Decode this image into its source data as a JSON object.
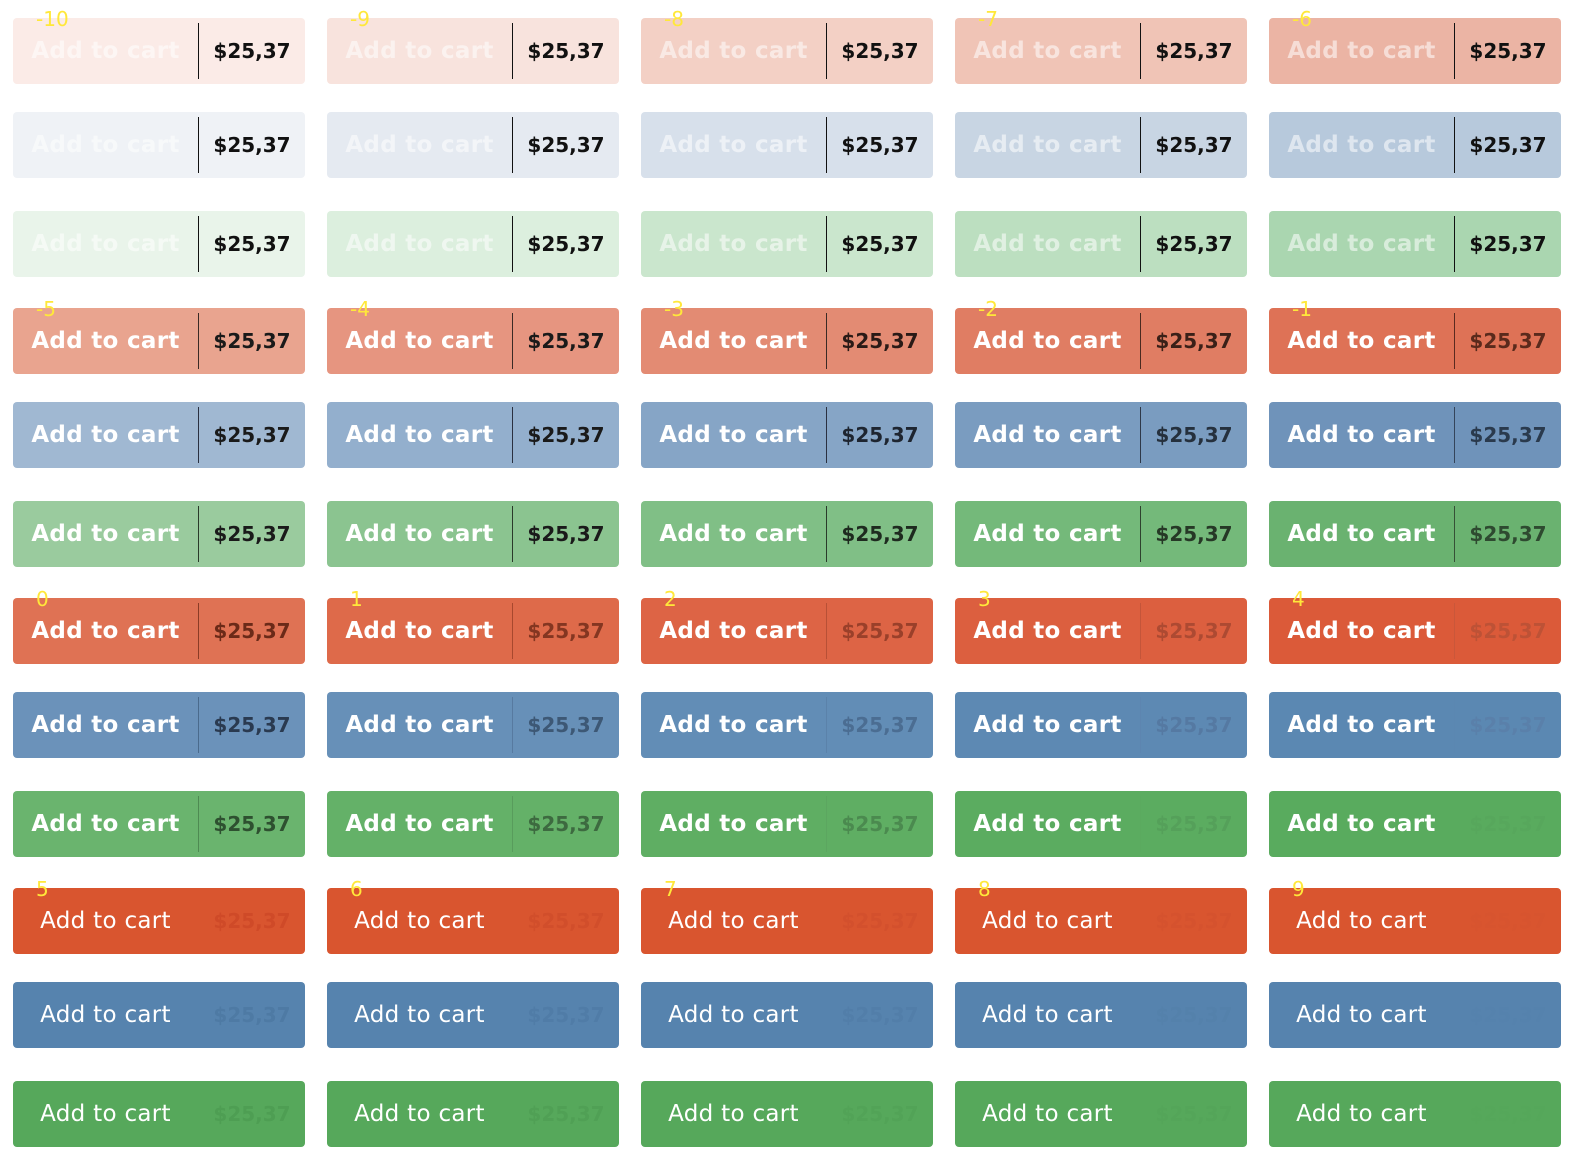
{
  "button_label": "Add to cart",
  "price": "$25,37",
  "colors": {
    "level_label": "#ffe83a",
    "label_text_light": "#ffffff",
    "price_text_dark": "#111111"
  },
  "groups": [
    {
      "level_labels": [
        "-10",
        "-9",
        "-8",
        "-7",
        "-6"
      ],
      "rows": [
        {
          "label_weight": "bold",
          "label_opacity": 0.55,
          "buttons": [
            {
              "bg": "#fbebe7",
              "price_color": "#111111",
              "divider": "#111111"
            },
            {
              "bg": "#f8e3dd",
              "price_color": "#111111",
              "divider": "#111111"
            },
            {
              "bg": "#f3d0c5",
              "price_color": "#111111",
              "divider": "#111111"
            },
            {
              "bg": "#f0c4b6",
              "price_color": "#111111",
              "divider": "#111111"
            },
            {
              "bg": "#ebb4a4",
              "price_color": "#111111",
              "divider": "#111111"
            }
          ]
        },
        {
          "label_weight": "bold",
          "label_opacity": 0.55,
          "buttons": [
            {
              "bg": "#eff2f6",
              "price_color": "#111111",
              "divider": "#111111"
            },
            {
              "bg": "#e5eaf1",
              "price_color": "#111111",
              "divider": "#111111"
            },
            {
              "bg": "#d7e0eb",
              "price_color": "#111111",
              "divider": "#111111"
            },
            {
              "bg": "#c8d5e3",
              "price_color": "#111111",
              "divider": "#111111"
            },
            {
              "bg": "#b7c9dc",
              "price_color": "#111111",
              "divider": "#111111"
            }
          ]
        },
        {
          "label_weight": "bold",
          "label_opacity": 0.55,
          "buttons": [
            {
              "bg": "#e9f4ea",
              "price_color": "#111111",
              "divider": "#111111"
            },
            {
              "bg": "#dcefde",
              "price_color": "#111111",
              "divider": "#111111"
            },
            {
              "bg": "#cae6cd",
              "price_color": "#111111",
              "divider": "#111111"
            },
            {
              "bg": "#bcdfc0",
              "price_color": "#111111",
              "divider": "#111111"
            },
            {
              "bg": "#aad6b0",
              "price_color": "#111111",
              "divider": "#111111"
            }
          ]
        }
      ]
    },
    {
      "level_labels": [
        "-5",
        "-4",
        "-3",
        "-2",
        "-1"
      ],
      "rows": [
        {
          "label_weight": "bold",
          "label_opacity": 1,
          "buttons": [
            {
              "bg": "#e9a48f",
              "price_color": "#1a1a1a",
              "divider": "#3a2a25"
            },
            {
              "bg": "#e69580",
              "price_color": "#1a1a1a",
              "divider": "#3a2a25"
            },
            {
              "bg": "#e38b73",
              "price_color": "#2a1a16",
              "divider": "#3a2a25"
            },
            {
              "bg": "#e07d63",
              "price_color": "#3a2018",
              "divider": "#4a2a20"
            },
            {
              "bg": "#de7256",
              "price_color": "#5a2a1c",
              "divider": "#5a2a20"
            }
          ]
        },
        {
          "label_weight": "bold",
          "label_opacity": 1,
          "buttons": [
            {
              "bg": "#a0b8d2",
              "price_color": "#1a1a1a",
              "divider": "#2a3040"
            },
            {
              "bg": "#93afcd",
              "price_color": "#1a1a1a",
              "divider": "#2a3040"
            },
            {
              "bg": "#86a5c6",
              "price_color": "#1e2530",
              "divider": "#2a3040"
            },
            {
              "bg": "#7a9cc0",
              "price_color": "#25303d",
              "divider": "#2e3848"
            },
            {
              "bg": "#6f93ba",
              "price_color": "#2a3a4d",
              "divider": "#34445a"
            }
          ]
        },
        {
          "label_weight": "bold",
          "label_opacity": 1,
          "buttons": [
            {
              "bg": "#9acb9e",
              "price_color": "#1a1a1a",
              "divider": "#2a3a2a"
            },
            {
              "bg": "#8bc490",
              "price_color": "#1a1a1a",
              "divider": "#2a3a2a"
            },
            {
              "bg": "#80bf86",
              "price_color": "#1e2a1f",
              "divider": "#2a3a2a"
            },
            {
              "bg": "#74b97a",
              "price_color": "#263826",
              "divider": "#2e422e"
            },
            {
              "bg": "#6ab270",
              "price_color": "#2e4a30",
              "divider": "#365036"
            }
          ]
        }
      ]
    },
    {
      "level_labels": [
        "0",
        "1",
        "2",
        "3",
        "4"
      ],
      "rows": [
        {
          "label_weight": "bold",
          "label_opacity": 1,
          "buttons": [
            {
              "bg": "#df7254",
              "price_color": "#6b2a18",
              "divider": "#8a3c26"
            },
            {
              "bg": "#de6a4a",
              "price_color": "#843621",
              "divider": "#a8482e"
            },
            {
              "bg": "#dd6445",
              "price_color": "#9a402a",
              "divider": "#b85036"
            },
            {
              "bg": "#dc5f3f",
              "price_color": "#ad4a32",
              "divider": "#c4553a"
            },
            {
              "bg": "#db5a39",
              "price_color": "#bd5236",
              "divider": "#ca573a"
            }
          ]
        },
        {
          "label_weight": "bold",
          "label_opacity": 1,
          "buttons": [
            {
              "bg": "#6b92ba",
              "price_color": "#2a3a50",
              "divider": "#4a6a8c"
            },
            {
              "bg": "#6790b8",
              "price_color": "#3d5875",
              "divider": "#577aa0"
            },
            {
              "bg": "#628db6",
              "price_color": "#4b6d92",
              "divider": "#5b82aa"
            },
            {
              "bg": "#5d89b3",
              "price_color": "#5579a2",
              "divider": "#5d85b0"
            },
            {
              "bg": "#5b88b2",
              "price_color": "#5a80aa",
              "divider": "#5b87b1"
            }
          ]
        },
        {
          "label_weight": "bold",
          "label_opacity": 1,
          "buttons": [
            {
              "bg": "#6ab46e",
              "price_color": "#2e5030",
              "divider": "#4e8a52"
            },
            {
              "bg": "#64b168",
              "price_color": "#3d6a40",
              "divider": "#589c5c"
            },
            {
              "bg": "#5fae63",
              "price_color": "#4b8a4f",
              "divider": "#5ca660"
            },
            {
              "bg": "#5bac60",
              "price_color": "#55a05a",
              "divider": "#5baa5f"
            },
            {
              "bg": "#59ab5e",
              "price_color": "#57a75c",
              "divider": "#59ab5e"
            }
          ]
        }
      ]
    },
    {
      "level_labels": [
        "5",
        "6",
        "7",
        "8",
        "9"
      ],
      "rows": [
        {
          "label_weight": "normal",
          "label_opacity": 1,
          "buttons": [
            {
              "bg": "#d9552f",
              "price_color": "#cf4a28",
              "divider": "#d9552f"
            },
            {
              "bg": "#d9552f",
              "price_color": "#d14e2b",
              "divider": "#d9552f"
            },
            {
              "bg": "#d9552f",
              "price_color": "#d3502d",
              "divider": "#d9552f"
            },
            {
              "bg": "#d9552f",
              "price_color": "#d5522e",
              "divider": "#d9552f"
            },
            {
              "bg": "#d9552f",
              "price_color": "#d7542f",
              "divider": "#d9552f"
            }
          ]
        },
        {
          "label_weight": "normal",
          "label_opacity": 1,
          "buttons": [
            {
              "bg": "#5683ae",
              "price_color": "#4e7aa4",
              "divider": "#5683ae"
            },
            {
              "bg": "#5683ae",
              "price_color": "#507ca7",
              "divider": "#5683ae"
            },
            {
              "bg": "#5683ae",
              "price_color": "#527ea9",
              "divider": "#5683ae"
            },
            {
              "bg": "#5683ae",
              "price_color": "#5481ab",
              "divider": "#5683ae"
            },
            {
              "bg": "#5683ae",
              "price_color": "#5582ad",
              "divider": "#5683ae"
            }
          ]
        },
        {
          "label_weight": "normal",
          "label_opacity": 1,
          "buttons": [
            {
              "bg": "#56a85b",
              "price_color": "#4e9e53",
              "divider": "#56a85b"
            },
            {
              "bg": "#56a85b",
              "price_color": "#50a055",
              "divider": "#56a85b"
            },
            {
              "bg": "#56a85b",
              "price_color": "#52a357",
              "divider": "#56a85b"
            },
            {
              "bg": "#56a85b",
              "price_color": "#54a559",
              "divider": "#56a85b"
            },
            {
              "bg": "#56a85b",
              "price_color": "#55a75a",
              "divider": "#56a85b"
            }
          ]
        }
      ]
    }
  ]
}
